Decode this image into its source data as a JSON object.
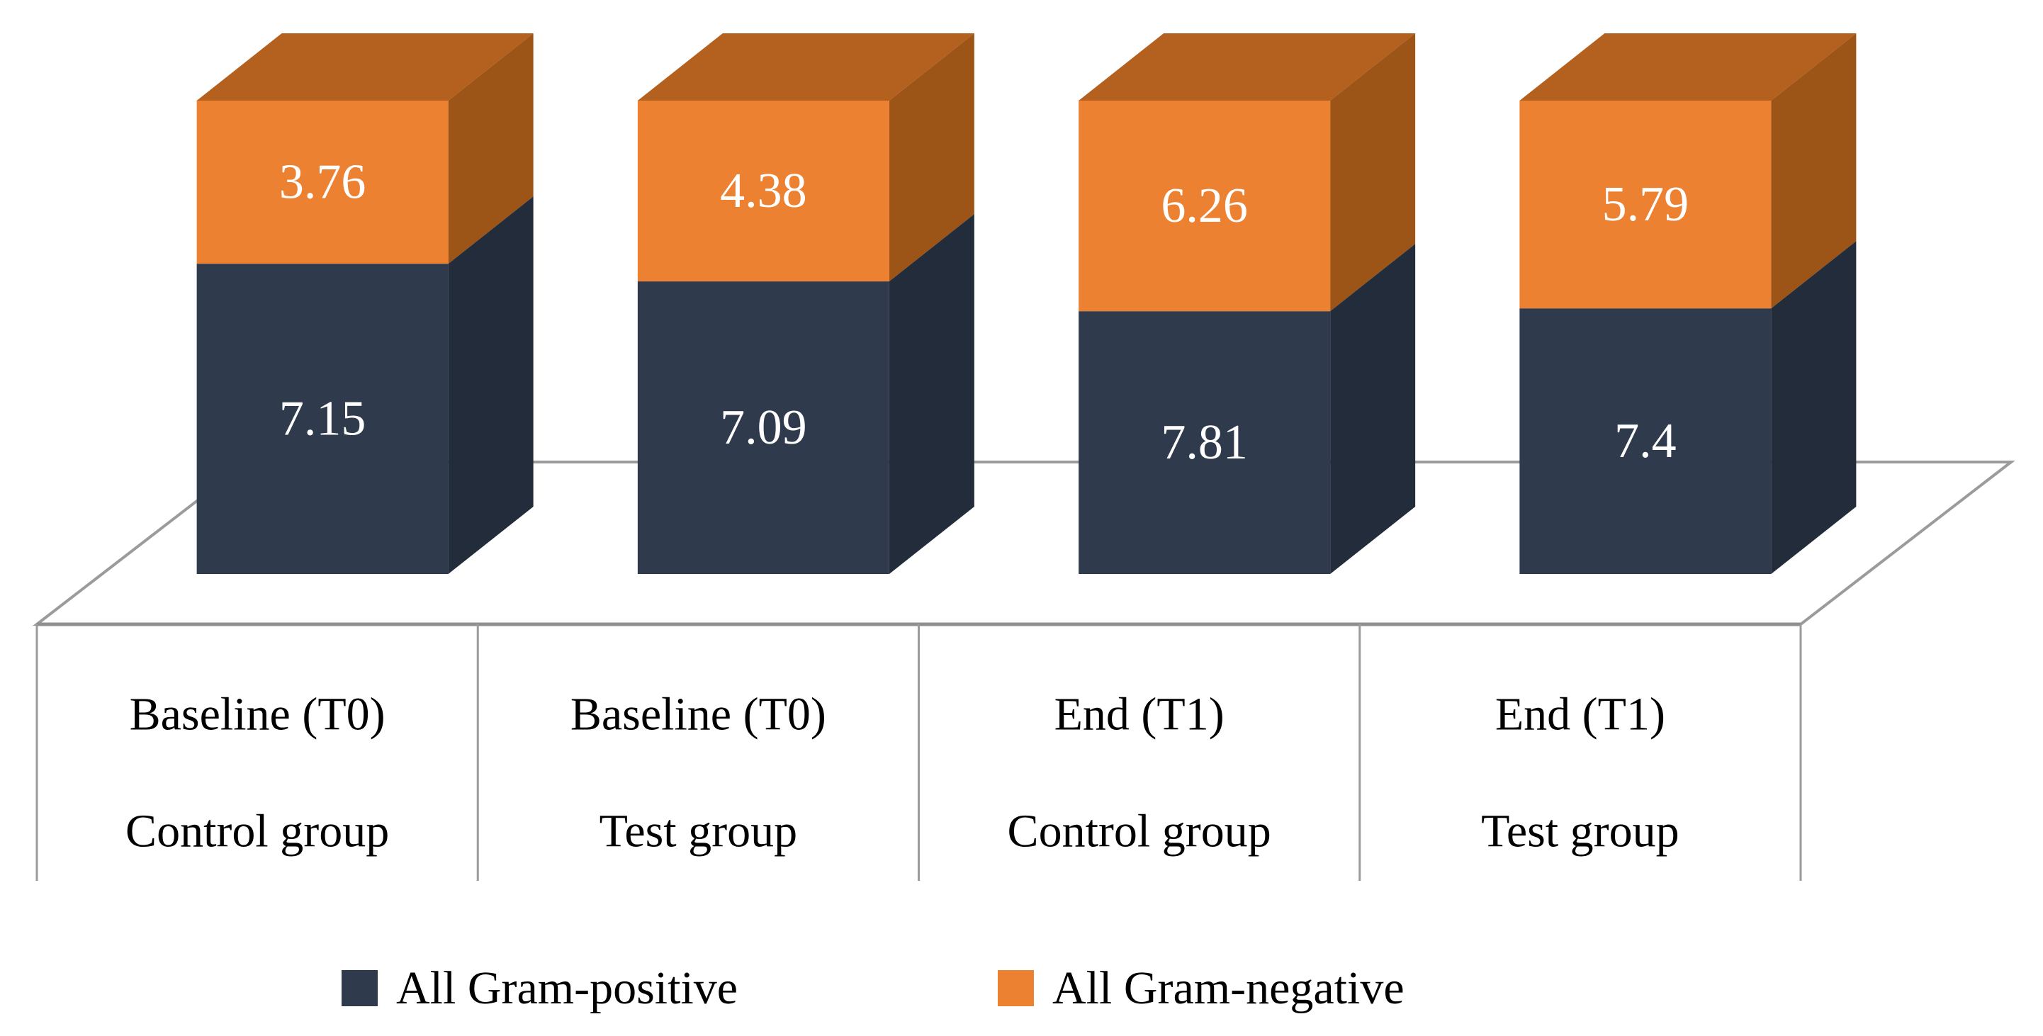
{
  "chart_data": {
    "type": "bar",
    "variant": "3d-stacked-column",
    "title": "",
    "xlabel": "",
    "ylabel": "",
    "grid": "floor-outline-only",
    "legend_position": "bottom",
    "equal_total_bar_heights": true,
    "categories": [
      {
        "period": "Baseline (T0)",
        "group": "Control group"
      },
      {
        "period": "Baseline (T0)",
        "group": "Test group"
      },
      {
        "period": "End (T1)",
        "group": "Control group"
      },
      {
        "period": "End (T1)",
        "group": "Test group"
      }
    ],
    "series": [
      {
        "name": "All Gram-positive",
        "stack_position": "bottom",
        "values": [
          7.15,
          7.09,
          7.81,
          7.4
        ],
        "labels": [
          "7.15",
          "7.09",
          "7.81",
          "7.4"
        ],
        "color_front": "#2F3B4D",
        "color_side": "#222C3B",
        "label_color": "#FFFFFF"
      },
      {
        "name": "All Gram-negative",
        "stack_position": "top",
        "values": [
          3.76,
          4.38,
          6.26,
          5.79
        ],
        "labels": [
          "3.76",
          "4.38",
          "6.26",
          "5.79"
        ],
        "color_front": "#ED8132",
        "color_side": "#9C5417",
        "color_top": "#B4611F",
        "label_color": "#FFFFFF"
      }
    ]
  },
  "legend": {
    "items": [
      {
        "label": "All Gram-positive",
        "color": "#2F3B4D"
      },
      {
        "label": "All Gram-negative",
        "color": "#ED8132"
      }
    ]
  },
  "colors": {
    "background": "#FFFFFF",
    "axis_line": "#9B9B9B",
    "axis_front_edge": "#8F8F8F",
    "category_text": "#000000"
  }
}
